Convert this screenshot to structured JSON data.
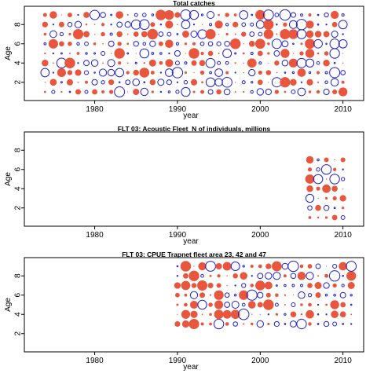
{
  "colors": {
    "positive": "#e8563d",
    "negative": "#1f1fd6"
  },
  "chart_data": [
    {
      "type": "bubble",
      "title": "Total catches",
      "xlabel": "year",
      "ylabel": "Age",
      "xlim": [
        1971.5,
        2012.5
      ],
      "ylim": [
        0.1,
        9.9
      ],
      "xticks": [
        1980,
        1990,
        2000,
        2010
      ],
      "yticks": [
        2,
        4,
        6,
        8
      ],
      "years": [
        1974,
        2010
      ],
      "ages": [
        1,
        9
      ],
      "seed": 11,
      "grid": false
    },
    {
      "type": "bubble",
      "title": "FLT 03: Acoustic Fleet_N of individuals, millions",
      "xlabel": "year",
      "ylabel": "Age",
      "xlim": [
        1971.5,
        2012.5
      ],
      "ylim": [
        0.1,
        9.9
      ],
      "xticks": [
        1980,
        1990,
        2000,
        2010
      ],
      "yticks": [
        2,
        4,
        6,
        8
      ],
      "years": [
        2006,
        2010
      ],
      "ages": [
        1,
        7
      ],
      "seed": 23,
      "grid": false
    },
    {
      "type": "bubble",
      "title": "FLT 03: CPUE Trapnet fleet area 23, 42 and 47",
      "xlabel": "year",
      "ylabel": "Age",
      "xlim": [
        1971.5,
        2012.5
      ],
      "ylim": [
        0.1,
        9.9
      ],
      "xticks": [
        1980,
        1990,
        2000,
        2010
      ],
      "yticks": [
        2,
        4,
        6,
        8
      ],
      "years": [
        1990,
        2011
      ],
      "ages": [
        3,
        9
      ],
      "seed": 37,
      "grid": false
    }
  ]
}
